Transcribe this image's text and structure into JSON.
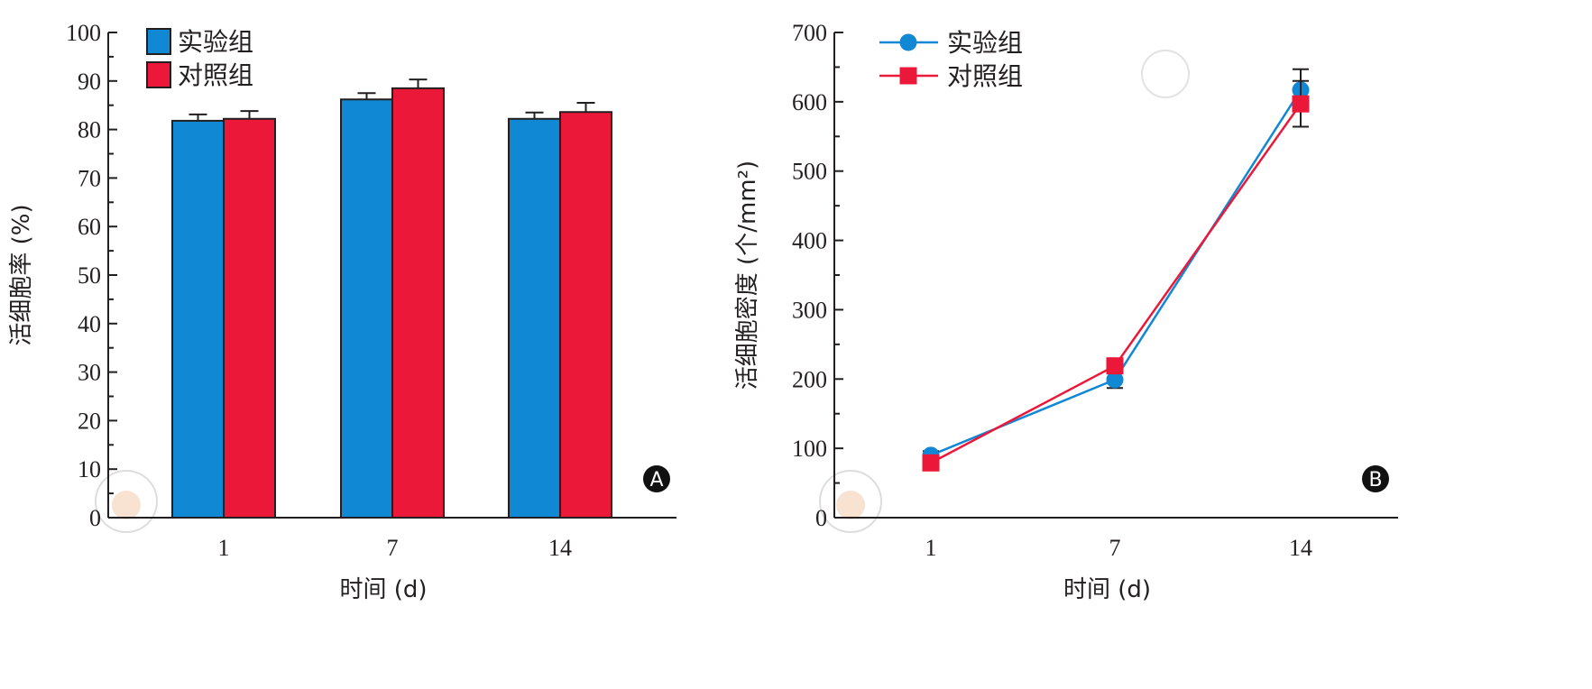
{
  "chart_data": [
    {
      "type": "bar",
      "panel": "A",
      "title": "",
      "xlabel": "时间 (d)",
      "ylabel": "活细胞率 (%)",
      "categories": [
        "1",
        "7",
        "14"
      ],
      "ylim": [
        0,
        100
      ],
      "yticks": [
        0,
        10,
        20,
        30,
        40,
        50,
        60,
        70,
        80,
        90,
        100
      ],
      "legend_position": "top-left",
      "series": [
        {
          "name": "实验组",
          "color": "#1188d4",
          "values": [
            81.8,
            86.2,
            82.2
          ],
          "error": [
            1.3,
            1.3,
            1.3
          ]
        },
        {
          "name": "对照组",
          "color": "#ec1839",
          "values": [
            82.2,
            88.5,
            83.6
          ],
          "error": [
            1.6,
            1.8,
            1.9
          ]
        }
      ]
    },
    {
      "type": "line",
      "panel": "B",
      "title": "",
      "xlabel": "时间 (d)",
      "ylabel": "活细胞密度 (个/mm²)",
      "categories": [
        "1",
        "7",
        "14"
      ],
      "ylim": [
        0,
        700
      ],
      "yticks": [
        0,
        100,
        200,
        300,
        400,
        500,
        600,
        700
      ],
      "legend_position": "top-left",
      "series": [
        {
          "name": "实验组",
          "color": "#1188d4",
          "marker": "circle",
          "values": [
            90,
            199,
            617
          ],
          "error": [
            6,
            12,
            30
          ]
        },
        {
          "name": "对照组",
          "color": "#ec1839",
          "marker": "square",
          "values": [
            79,
            219,
            597
          ],
          "error": [
            5,
            10,
            33
          ]
        }
      ]
    }
  ]
}
